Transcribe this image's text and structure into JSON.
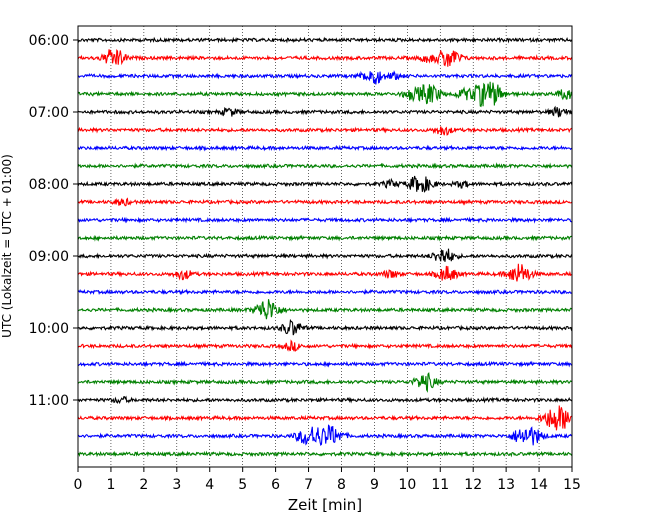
{
  "chart_data": {
    "type": "line",
    "title": "",
    "xlabel": "Zeit  [min]",
    "ylabel": "UTC (Lokalzeit = UTC + 01:00)",
    "xlim": [
      0,
      15
    ],
    "x_ticks": [
      "0",
      "1",
      "2",
      "3",
      "4",
      "5",
      "6",
      "7",
      "8",
      "9",
      "10",
      "11",
      "12",
      "13",
      "14",
      "15"
    ],
    "y_tick_labels": [
      "06:00",
      "07:00",
      "08:00",
      "09:00",
      "10:00",
      "11:00"
    ],
    "grid": "vertical-dotted",
    "colors_cycle": [
      "#000000",
      "#ff0000",
      "#0000ff",
      "#008000"
    ],
    "rows": [
      {
        "time": "06:00",
        "color": "#000000",
        "events": []
      },
      {
        "time": "06:15",
        "color": "#ff0000",
        "events": [
          {
            "x": 1.1,
            "amp": 1.0
          },
          {
            "x": 10.6,
            "amp": 0.35
          },
          {
            "x": 11.25,
            "amp": 1.1
          }
        ]
      },
      {
        "time": "06:30",
        "color": "#0000ff",
        "events": [
          {
            "x": 8.95,
            "amp": 0.9
          },
          {
            "x": 9.6,
            "amp": 0.3
          }
        ]
      },
      {
        "time": "06:45",
        "color": "#008000",
        "events": [
          {
            "x": 10.1,
            "amp": 0.5
          },
          {
            "x": 10.65,
            "amp": 1.1
          },
          {
            "x": 11.7,
            "amp": 0.45
          },
          {
            "x": 12.25,
            "amp": 1.1
          },
          {
            "x": 12.65,
            "amp": 0.9
          },
          {
            "x": 14.8,
            "amp": 0.5
          }
        ]
      },
      {
        "time": "07:00",
        "color": "#000000",
        "events": [
          {
            "x": 4.6,
            "amp": 0.4
          },
          {
            "x": 14.6,
            "amp": 0.5
          }
        ]
      },
      {
        "time": "07:15",
        "color": "#ff0000",
        "events": [
          {
            "x": 11.1,
            "amp": 0.5
          }
        ]
      },
      {
        "time": "07:30",
        "color": "#0000ff",
        "events": []
      },
      {
        "time": "07:45",
        "color": "#008000",
        "events": []
      },
      {
        "time": "08:00",
        "color": "#000000",
        "events": [
          {
            "x": 9.5,
            "amp": 0.35
          },
          {
            "x": 10.3,
            "amp": 0.8
          },
          {
            "x": 10.65,
            "amp": 0.4
          },
          {
            "x": 11.65,
            "amp": 0.3
          }
        ]
      },
      {
        "time": "08:15",
        "color": "#ff0000",
        "events": [
          {
            "x": 1.35,
            "amp": 0.35
          }
        ]
      },
      {
        "time": "08:30",
        "color": "#0000ff",
        "events": []
      },
      {
        "time": "08:45",
        "color": "#008000",
        "events": []
      },
      {
        "time": "09:00",
        "color": "#000000",
        "events": [
          {
            "x": 11.1,
            "amp": 0.9
          }
        ]
      },
      {
        "time": "09:15",
        "color": "#ff0000",
        "events": [
          {
            "x": 3.2,
            "amp": 0.5
          },
          {
            "x": 9.5,
            "amp": 0.4
          },
          {
            "x": 11.2,
            "amp": 0.8
          },
          {
            "x": 13.4,
            "amp": 1.1
          }
        ]
      },
      {
        "time": "09:30",
        "color": "#0000ff",
        "events": []
      },
      {
        "time": "09:45",
        "color": "#008000",
        "events": [
          {
            "x": 5.75,
            "amp": 1.2
          }
        ]
      },
      {
        "time": "10:00",
        "color": "#000000",
        "events": [
          {
            "x": 6.5,
            "amp": 0.8
          }
        ]
      },
      {
        "time": "10:15",
        "color": "#ff0000",
        "events": [
          {
            "x": 6.5,
            "amp": 0.45
          }
        ]
      },
      {
        "time": "10:30",
        "color": "#0000ff",
        "events": []
      },
      {
        "time": "10:45",
        "color": "#008000",
        "events": [
          {
            "x": 10.55,
            "amp": 0.9
          }
        ]
      },
      {
        "time": "11:00",
        "color": "#000000",
        "events": [
          {
            "x": 1.3,
            "amp": 0.3
          }
        ]
      },
      {
        "time": "11:15",
        "color": "#ff0000",
        "events": [
          {
            "x": 14.5,
            "amp": 1.3
          },
          {
            "x": 14.85,
            "amp": 0.45
          }
        ]
      },
      {
        "time": "11:30",
        "color": "#0000ff",
        "events": [
          {
            "x": 6.85,
            "amp": 0.6
          },
          {
            "x": 7.2,
            "amp": 0.9
          },
          {
            "x": 7.7,
            "amp": 1.0
          },
          {
            "x": 13.4,
            "amp": 0.6
          },
          {
            "x": 13.8,
            "amp": 0.9
          }
        ]
      },
      {
        "time": "11:45",
        "color": "#008000",
        "events": []
      }
    ]
  }
}
